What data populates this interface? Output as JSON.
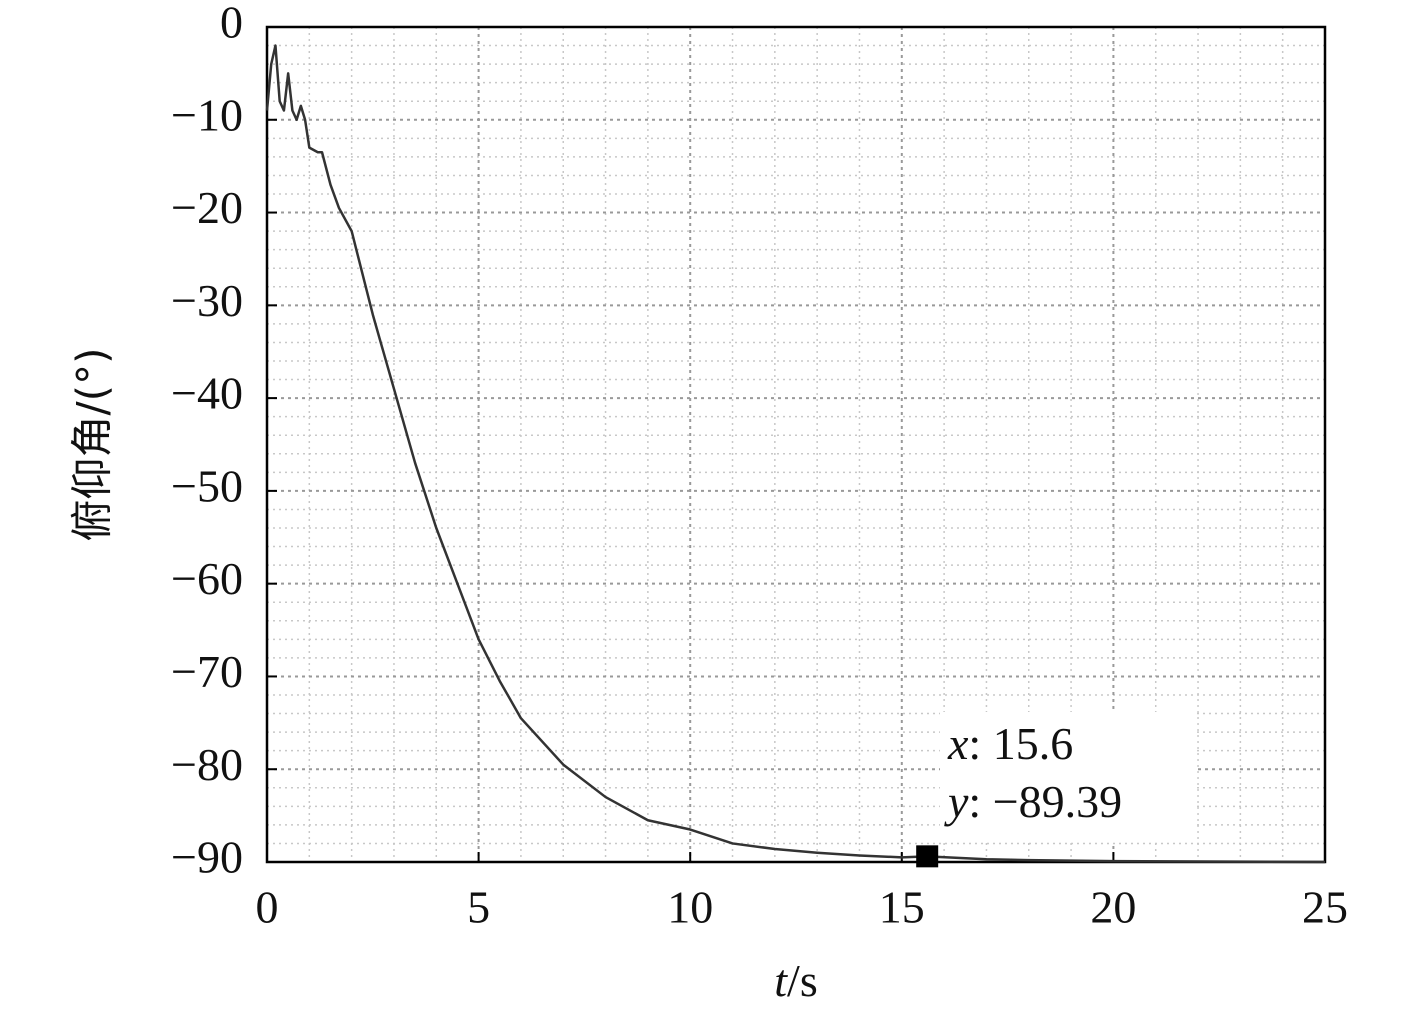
{
  "chart_data": {
    "type": "line",
    "xlabel": "t/s",
    "ylabel": "俯仰角/(°)",
    "xlim": [
      0,
      25
    ],
    "ylim": [
      -90,
      0
    ],
    "xticks": [
      0,
      5,
      10,
      15,
      20,
      25
    ],
    "yticks": [
      0,
      {
        "value": -10,
        "label": "−10"
      },
      {
        "value": -20,
        "label": "−20"
      },
      {
        "value": -30,
        "label": "−30"
      },
      {
        "value": -40,
        "label": "−40"
      },
      {
        "value": -50,
        "label": "−50"
      },
      {
        "value": -60,
        "label": "−60"
      },
      {
        "value": -70,
        "label": "−70"
      },
      {
        "value": -80,
        "label": "−80"
      },
      {
        "value": -90,
        "label": "−90"
      }
    ],
    "grid": true,
    "minor_grid": true,
    "series": [
      {
        "color": "#333333",
        "x": [
          0,
          0.1,
          0.2,
          0.3,
          0.4,
          0.5,
          0.6,
          0.7,
          0.8,
          0.9,
          1.0,
          1.2,
          1.3,
          1.5,
          1.7,
          2,
          2.5,
          3,
          3.5,
          4,
          4.5,
          5,
          5.5,
          6,
          7,
          8,
          9,
          10,
          11,
          12,
          13,
          14,
          15,
          15.6,
          17,
          18,
          20,
          25
        ],
        "values": [
          -9,
          -4,
          -2,
          -8,
          -9,
          -5,
          -9,
          -10,
          -8.5,
          -10,
          -13,
          -13.5,
          -13.5,
          -17,
          -19.5,
          -22,
          -31,
          -39,
          -47,
          -54,
          -60,
          -66,
          -70.5,
          -74.5,
          -79.5,
          -83,
          -85.5,
          -86.5,
          -88,
          -88.6,
          -89,
          -89.3,
          -89.5,
          -89.39,
          -89.7,
          -89.8,
          -89.9,
          -90
        ]
      }
    ],
    "datatip": {
      "x": 15.6,
      "y": -89.39,
      "labels": [
        "x: 15.6",
        "y: −89.39"
      ]
    }
  }
}
